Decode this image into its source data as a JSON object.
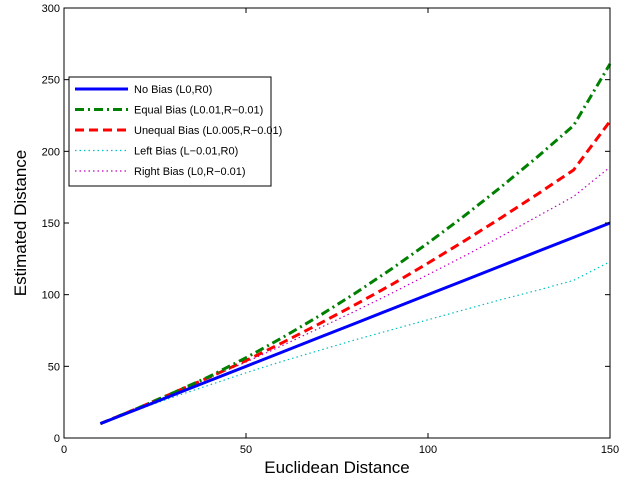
{
  "chart_data": {
    "type": "line",
    "title": "",
    "xlabel": "Euclidean Distance",
    "ylabel": "Estimated Distance",
    "xlim": [
      0,
      150
    ],
    "ylim": [
      0,
      300
    ],
    "xticks": [
      0,
      50,
      100,
      150
    ],
    "yticks": [
      0,
      50,
      100,
      150,
      200,
      250,
      300
    ],
    "grid": false,
    "legend_position": "upper-left",
    "x": [
      10,
      20,
      30,
      40,
      50,
      60,
      70,
      80,
      90,
      100,
      110,
      120,
      130,
      140,
      150
    ],
    "series": [
      {
        "name": "No Bias (L0,R0)",
        "color": "#0000ff",
        "style": "solid",
        "values": [
          10,
          20,
          30,
          40,
          50,
          60,
          70,
          80,
          90,
          100,
          110,
          120,
          130,
          140,
          150
        ]
      },
      {
        "name": "Equal Bias (L0.01,R−0.01)",
        "color": "#008000",
        "style": "dashdot",
        "values": [
          10,
          20.5,
          31.5,
          43,
          56,
          70,
          85,
          101,
          118,
          136,
          155,
          175,
          196,
          218,
          261
        ]
      },
      {
        "name": "Unequal Bias (L0.005,R−0.01)",
        "color": "#ff0000",
        "style": "dashed",
        "values": [
          10,
          20.5,
          31.5,
          42.5,
          54,
          66.5,
          79.5,
          93,
          107,
          122,
          137.5,
          153.5,
          170,
          187,
          221
        ]
      },
      {
        "name": "Left Bias (L−0.01,R0)",
        "color": "#00bfbf",
        "style": "dotted",
        "values": [
          10,
          19.5,
          28.5,
          37,
          45.5,
          53.5,
          61,
          68.5,
          75.5,
          82.5,
          89.5,
          96.5,
          103,
          110,
          123
        ]
      },
      {
        "name": "Right Bias (L0,R−0.01)",
        "color": "#bf00bf",
        "style": "dotted",
        "values": [
          10,
          20.5,
          31,
          42,
          53,
          64.5,
          76.5,
          88.5,
          101,
          114,
          127,
          140.5,
          154.5,
          168.5,
          189
        ]
      }
    ]
  }
}
